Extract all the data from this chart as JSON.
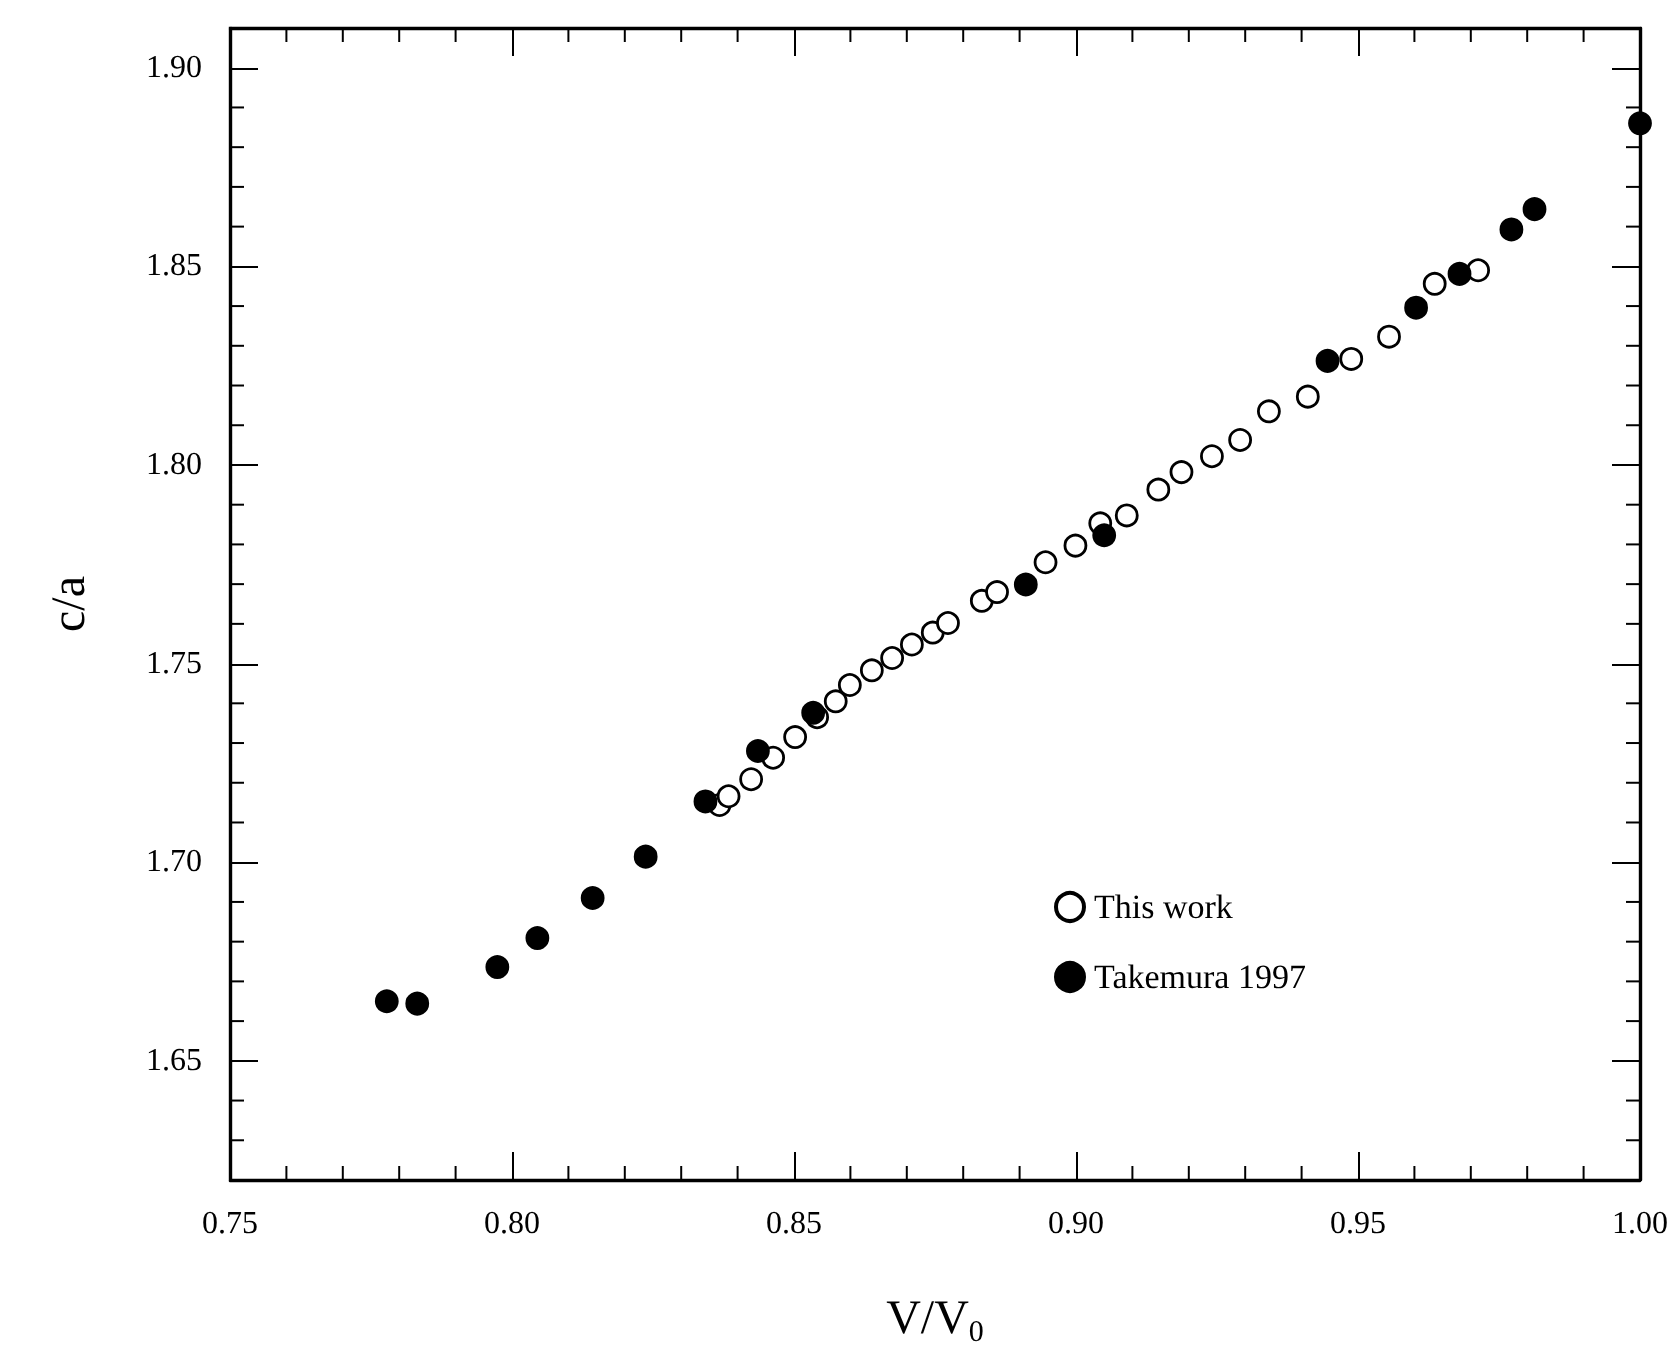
{
  "chart_data": {
    "type": "scatter",
    "xlabel": "V/V$_{0}$",
    "ylabel": "c/a",
    "xlim": [
      0.75,
      1.0
    ],
    "xticks": [
      0.75,
      {
        "value": 0.8,
        "label": "0.80"
      },
      0.85,
      {
        "value": 0.9,
        "label": "0.90"
      },
      0.95,
      {
        "value": 1.0,
        "label": "1.00"
      }
    ],
    "ylim": [
      1.62,
      1.91
    ],
    "yticks": [
      1.65,
      {
        "value": 1.7,
        "label": "1.70"
      },
      1.75,
      {
        "value": 1.8,
        "label": "1.80"
      },
      1.85,
      {
        "value": 1.9,
        "label": "1.90"
      }
    ],
    "grid": false,
    "legend": "bottom right",
    "series": [
      {
        "name": "This work",
        "color": "#ffffff",
        "marker": "circle",
        "x": [
          0.8368,
          0.8384,
          0.8424,
          0.8463,
          0.8502,
          0.8541,
          0.8574,
          0.8599,
          0.8638,
          0.8674,
          0.8709,
          0.8746,
          0.8773,
          0.8833,
          0.886,
          0.8946,
          0.8999,
          0.9043,
          0.909,
          0.9146,
          0.9187,
          0.9241,
          0.9291,
          0.9342,
          0.9411,
          0.9488,
          0.9555,
          0.9636,
          0.9713
        ],
        "values": [
          1.7144,
          1.7166,
          1.7209,
          1.7263,
          1.7315,
          1.7365,
          1.7405,
          1.7446,
          1.7483,
          1.7514,
          1.7548,
          1.7578,
          1.7602,
          1.7658,
          1.768,
          1.7755,
          1.7797,
          1.7853,
          1.7873,
          1.7938,
          1.7982,
          1.8022,
          1.8063,
          1.8135,
          1.8172,
          1.8267,
          1.8323,
          1.8456,
          1.849
        ]
      },
      {
        "name": "Takemura 1997",
        "color": "#000000",
        "marker": "circle",
        "x": [
          0.7778,
          0.7832,
          0.7974,
          0.8045,
          0.8143,
          0.8237,
          0.8343,
          0.8436,
          0.8534,
          0.8911,
          0.905,
          0.9446,
          0.9603,
          0.968,
          0.9772,
          0.9813,
          1.0
        ],
        "values": [
          1.665,
          1.6644,
          1.6736,
          1.6809,
          1.691,
          1.7014,
          1.7153,
          1.728,
          1.7376,
          1.7699,
          1.7823,
          1.8262,
          1.8396,
          1.8481,
          1.8593,
          1.8644,
          1.886
        ]
      }
    ]
  }
}
